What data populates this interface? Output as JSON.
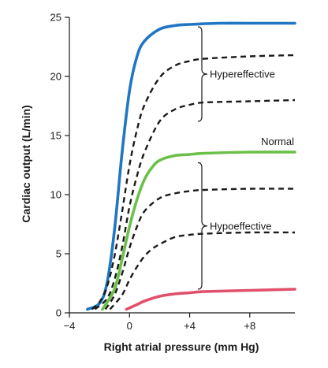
{
  "chart_data": {
    "type": "line",
    "xlabel": "Right atrial pressure (mm Hg)",
    "ylabel": "Cardiac output (L/min)",
    "xlim": [
      -4,
      11
    ],
    "ylim": [
      0,
      25
    ],
    "xticks": [
      -4,
      0,
      4,
      8
    ],
    "xtick_labels": [
      "−4",
      "0",
      "+4",
      "+8"
    ],
    "yticks": [
      0,
      5,
      10,
      15,
      20,
      25
    ],
    "ytick_labels": [
      "0",
      "5",
      "10",
      "15",
      "20",
      "25"
    ],
    "grid": false,
    "series": [
      {
        "color": "#2176c4",
        "dash": "solid",
        "x": [
          -2.8,
          -2.0,
          -1.5,
          -1.0,
          -0.5,
          0.0,
          0.5,
          1.0,
          2.0,
          3.0,
          4.0,
          6.0,
          8.0,
          11.0
        ],
        "y": [
          0.3,
          0.8,
          2.5,
          7.0,
          13.5,
          18.8,
          21.7,
          23.0,
          24.0,
          24.3,
          24.4,
          24.5,
          24.5,
          24.5
        ]
      },
      {
        "color": "#1a1a1a",
        "dash": "dashed",
        "x": [
          -2.5,
          -2.0,
          -1.5,
          -1.0,
          -0.5,
          0.0,
          0.5,
          1.0,
          2.0,
          3.0,
          4.0,
          5.0,
          8.0,
          11.0
        ],
        "y": [
          0.3,
          0.9,
          2.2,
          4.8,
          8.5,
          12.5,
          15.5,
          17.6,
          19.9,
          20.9,
          21.3,
          21.5,
          21.7,
          21.8
        ]
      },
      {
        "color": "#1a1a1a",
        "dash": "dashed",
        "x": [
          -2.3,
          -1.5,
          -1.0,
          -0.5,
          0.0,
          0.5,
          1.0,
          2.0,
          3.0,
          4.0,
          5.0,
          8.0,
          11.0
        ],
        "y": [
          0.3,
          1.2,
          2.8,
          5.5,
          9.0,
          11.6,
          13.6,
          16.2,
          17.2,
          17.6,
          17.8,
          17.9,
          18.0
        ]
      },
      {
        "color": "#6cc04a",
        "dash": "solid",
        "x": [
          -1.8,
          -1.0,
          -0.5,
          0.0,
          0.5,
          1.0,
          1.5,
          2.0,
          3.0,
          4.0,
          5.0,
          8.0,
          11.0
        ],
        "y": [
          0.3,
          2.0,
          4.5,
          7.3,
          9.6,
          11.3,
          12.3,
          12.9,
          13.3,
          13.4,
          13.5,
          13.6,
          13.6
        ]
      },
      {
        "color": "#1a1a1a",
        "dash": "dashed",
        "x": [
          -1.6,
          -1.0,
          -0.5,
          0.0,
          0.5,
          1.0,
          2.0,
          3.0,
          4.0,
          5.0,
          8.0,
          11.0
        ],
        "y": [
          0.3,
          1.5,
          3.3,
          5.5,
          7.3,
          8.6,
          9.7,
          10.1,
          10.3,
          10.4,
          10.5,
          10.5
        ]
      },
      {
        "color": "#1a1a1a",
        "dash": "dashed",
        "x": [
          -1.3,
          -0.5,
          0.0,
          0.5,
          1.0,
          1.5,
          2.0,
          3.0,
          4.0,
          5.0,
          8.0,
          11.0
        ],
        "y": [
          0.3,
          1.5,
          2.8,
          3.9,
          4.8,
          5.4,
          5.8,
          6.4,
          6.6,
          6.7,
          6.8,
          6.8
        ]
      },
      {
        "color": "#e0506b",
        "dash": "solid",
        "x": [
          -0.2,
          0.5,
          1.0,
          2.0,
          3.0,
          4.0,
          5.0,
          8.0,
          11.0
        ],
        "y": [
          0.3,
          0.7,
          1.0,
          1.4,
          1.6,
          1.7,
          1.8,
          1.9,
          2.0
        ]
      }
    ],
    "annotations": [
      {
        "text": "Hypereffective",
        "bracket_from": 16.2,
        "bracket_to": 24.2
      },
      {
        "text": "Normal"
      },
      {
        "text": "Hypoeffective",
        "bracket_from": 2.0,
        "bracket_to": 12.7
      }
    ]
  }
}
